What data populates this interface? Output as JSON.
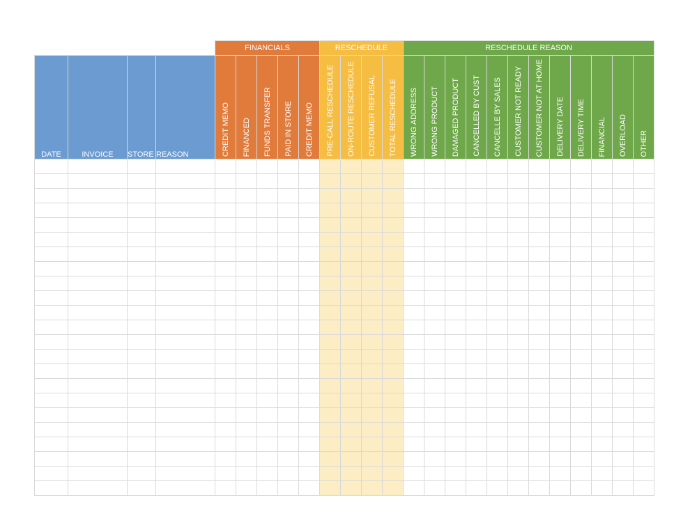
{
  "groups": [
    {
      "label": "",
      "span": 4,
      "color": "blank"
    },
    {
      "label": "FINANCIALS",
      "span": 5,
      "color": "orange"
    },
    {
      "label": "RESCHEDULE",
      "span": 4,
      "color": "yellow"
    },
    {
      "label": "RESCHEDULE REASON",
      "span": 12,
      "color": "green"
    }
  ],
  "columns": [
    {
      "label": "DATE",
      "group": "blue",
      "align": "center"
    },
    {
      "label": "INVOICE",
      "group": "blue",
      "align": "center"
    },
    {
      "label": "STORE",
      "group": "blue",
      "align": "left"
    },
    {
      "label": "REASON",
      "group": "blue",
      "align": "left"
    },
    {
      "label": "CREDIT MEMO",
      "group": "orange"
    },
    {
      "label": "FINANCED",
      "group": "orange"
    },
    {
      "label": "FUNDS TRANSFER",
      "group": "orange"
    },
    {
      "label": "PAID IN STORE",
      "group": "orange"
    },
    {
      "label": "CREDIT MEMO",
      "group": "orange"
    },
    {
      "label": "PRE-CALL RESCHEDULE",
      "group": "yellow"
    },
    {
      "label": "ON-ROUTE RESCHEDULE",
      "group": "yellow"
    },
    {
      "label": "CUSTOMER REFUSAL",
      "group": "yellow"
    },
    {
      "label": "TOTAL RESCHEDULE",
      "group": "yellow"
    },
    {
      "label": "WRONG ADDRESS",
      "group": "green"
    },
    {
      "label": "WRONG PRODUCT",
      "group": "green"
    },
    {
      "label": "DAMAGED PRODUCT",
      "group": "green"
    },
    {
      "label": "CANCELLED BY CUST",
      "group": "green"
    },
    {
      "label": "CANCELLE BY SALES",
      "group": "green"
    },
    {
      "label": "CUSTOMER NOT READY",
      "group": "green"
    },
    {
      "label": "CUSTOMER NOT AT HOME",
      "group": "green"
    },
    {
      "label": "DELIVERY DATE",
      "group": "green"
    },
    {
      "label": "DELIVERY TIME",
      "group": "green"
    },
    {
      "label": "FINANCIAL",
      "group": "green"
    },
    {
      "label": "OVERLOAD",
      "group": "green"
    },
    {
      "label": "OTHER",
      "group": "green"
    }
  ],
  "row_count": 23,
  "colors": {
    "blue": "#6b9bd1",
    "orange": "#e07b3c",
    "yellow": "#f5bd42",
    "yellow_fill": "#fdedc4",
    "green": "#6fa84a",
    "grid": "#d9d9d9"
  }
}
